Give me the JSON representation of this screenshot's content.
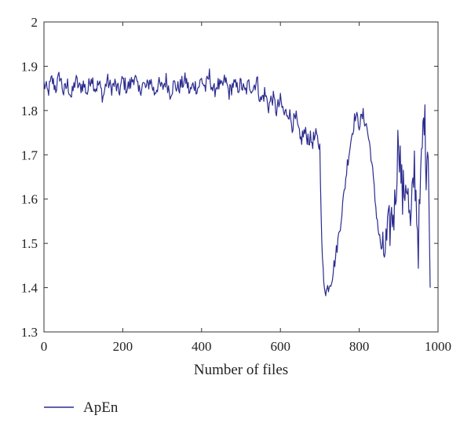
{
  "chart_data": {
    "type": "line",
    "title": "",
    "xlabel": "Number of files",
    "ylabel": "",
    "xlim": [
      0,
      1000
    ],
    "ylim": [
      1.3,
      2.0
    ],
    "xticks": [
      0,
      200,
      400,
      600,
      800,
      1000
    ],
    "yticks": [
      1.3,
      1.4,
      1.5,
      1.6,
      1.7,
      1.8,
      1.9,
      2.0
    ],
    "ytick_labels": [
      "1.3",
      "1.4",
      "1.5",
      "1.6",
      "1.7",
      "1.8",
      "1.9",
      "2"
    ],
    "grid": false,
    "legend": {
      "position": "bottom-left",
      "entries": [
        "ApEn"
      ]
    },
    "series": [
      {
        "name": "ApEn",
        "color": "#2b2b8f",
        "x": [
          0,
          10,
          20,
          30,
          40,
          50,
          60,
          70,
          80,
          90,
          100,
          110,
          120,
          130,
          140,
          150,
          160,
          170,
          180,
          190,
          200,
          210,
          220,
          230,
          240,
          250,
          260,
          270,
          280,
          290,
          300,
          310,
          320,
          330,
          340,
          350,
          360,
          370,
          380,
          390,
          400,
          410,
          420,
          430,
          440,
          450,
          460,
          470,
          480,
          490,
          500,
          510,
          520,
          530,
          540,
          550,
          560,
          570,
          580,
          590,
          600,
          610,
          620,
          630,
          640,
          650,
          660,
          670,
          680,
          690,
          700,
          705,
          710,
          715,
          720,
          730,
          740,
          750,
          760,
          770,
          780,
          790,
          800,
          810,
          820,
          830,
          840,
          850,
          860,
          870,
          880,
          890,
          900,
          910,
          920,
          930,
          940,
          950,
          960,
          965,
          970,
          975,
          980
        ],
        "y": [
          1.86,
          1.84,
          1.87,
          1.85,
          1.88,
          1.84,
          1.86,
          1.83,
          1.87,
          1.85,
          1.86,
          1.84,
          1.88,
          1.85,
          1.86,
          1.83,
          1.87,
          1.85,
          1.86,
          1.84,
          1.87,
          1.85,
          1.86,
          1.88,
          1.84,
          1.86,
          1.85,
          1.87,
          1.84,
          1.86,
          1.85,
          1.87,
          1.84,
          1.86,
          1.85,
          1.86,
          1.87,
          1.84,
          1.86,
          1.85,
          1.87,
          1.85,
          1.88,
          1.84,
          1.86,
          1.85,
          1.87,
          1.84,
          1.86,
          1.85,
          1.86,
          1.84,
          1.86,
          1.85,
          1.87,
          1.82,
          1.84,
          1.81,
          1.83,
          1.8,
          1.82,
          1.79,
          1.8,
          1.77,
          1.78,
          1.73,
          1.75,
          1.74,
          1.73,
          1.74,
          1.72,
          1.5,
          1.41,
          1.39,
          1.4,
          1.42,
          1.47,
          1.53,
          1.6,
          1.68,
          1.74,
          1.79,
          1.77,
          1.79,
          1.76,
          1.7,
          1.6,
          1.52,
          1.47,
          1.5,
          1.55,
          1.58,
          1.75,
          1.6,
          1.65,
          1.52,
          1.68,
          1.5,
          1.72,
          1.8,
          1.68,
          1.74,
          1.4
        ]
      }
    ]
  }
}
